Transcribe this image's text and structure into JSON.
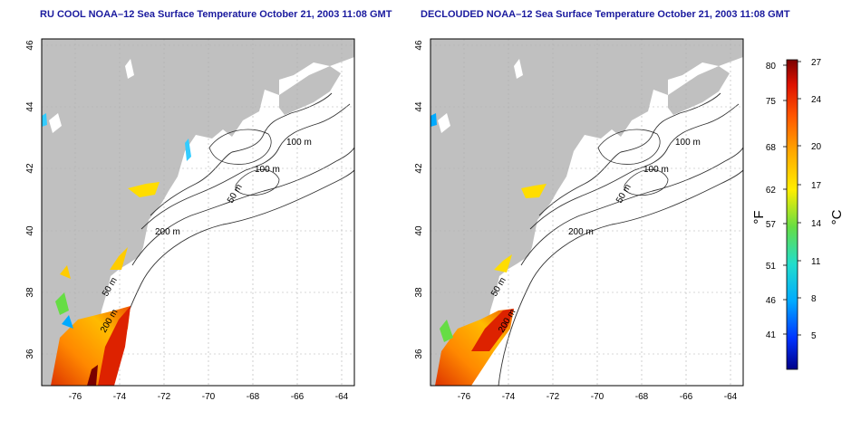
{
  "panels": [
    {
      "id": "left",
      "title": "RU COOL NOAA–12 Sea Surface Temperature October 21, 2003 11:08 GMT",
      "contour_labels": [
        "100 m",
        "100 m",
        "50 m",
        "200 m",
        "50 m",
        "200 m"
      ]
    },
    {
      "id": "right",
      "title": "DECLOUDED NOAA–12 Sea Surface Temperature October 21, 2003 11:08 GMT",
      "contour_labels": [
        "100 m",
        "100 m",
        "50 m",
        "200 m",
        "50 m",
        "200 m"
      ]
    }
  ],
  "axes": {
    "x_ticks": [
      "-76",
      "-74",
      "-72",
      "-70",
      "-68",
      "-66",
      "-64"
    ],
    "y_ticks": [
      "46",
      "44",
      "42",
      "40",
      "38",
      "36"
    ],
    "grid": true
  },
  "colorbar": {
    "fahrenheit_ticks": [
      "80",
      "75",
      "68",
      "62",
      "57",
      "51",
      "46",
      "41"
    ],
    "celsius_ticks": [
      "27",
      "24",
      "20",
      "17",
      "14",
      "11",
      "8",
      "5"
    ],
    "fahrenheit_label": "°F",
    "celsius_label": "°C",
    "colors": [
      "#000088",
      "#0033ff",
      "#00aaff",
      "#22ddcc",
      "#66dd44",
      "#ffee00",
      "#ffaa00",
      "#ff5500",
      "#dd1100",
      "#7a0000"
    ]
  },
  "colors": {
    "land": "#c0c0c0",
    "title": "#1a1a9e",
    "grid": "#b0b0b0"
  }
}
